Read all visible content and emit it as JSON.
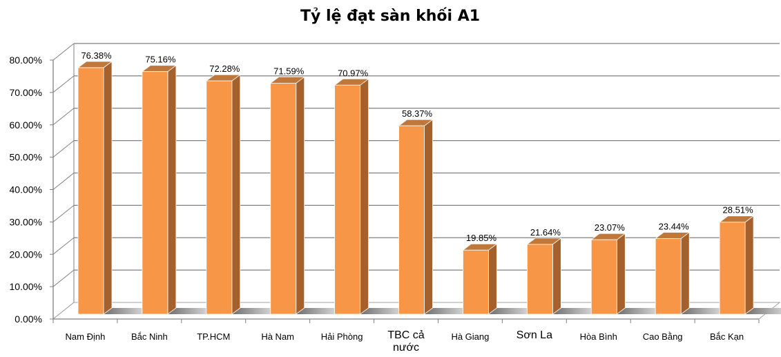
{
  "chart_data": {
    "type": "bar",
    "style": "3d-column",
    "title": "Tỷ lệ đạt sàn khối A1",
    "xlabel": "",
    "ylabel": "",
    "categories": [
      "Nam Định",
      "Bắc Ninh",
      "TP.HCM",
      "Hà Nam",
      "Hải Phòng",
      "TBC cả nước",
      "Hà Giang",
      "Sơn La",
      "Hòa Bình",
      "Cao Bằng",
      "Bắc Kạn"
    ],
    "values": [
      76.38,
      75.16,
      72.28,
      71.59,
      70.97,
      58.37,
      19.85,
      21.64,
      23.07,
      23.44,
      28.51
    ],
    "data_labels": [
      "76.38%",
      "75.16%",
      "72.28%",
      "71.59%",
      "70.97%",
      "58.37%",
      "19.85%",
      "21.64%",
      "23.07%",
      "23.44%",
      "28.51%"
    ],
    "y_ticks": [
      "0.00%",
      "10.00%",
      "20.00%",
      "30.00%",
      "40.00%",
      "50.00%",
      "60.00%",
      "70.00%",
      "80.00%"
    ],
    "ylim": [
      0,
      80
    ],
    "grid": true,
    "legend": "none",
    "colors": {
      "bar_front": "#F79646",
      "bar_side": "#A5602B",
      "bar_top": "#C0773A",
      "grid": "#7F7F7F"
    }
  }
}
